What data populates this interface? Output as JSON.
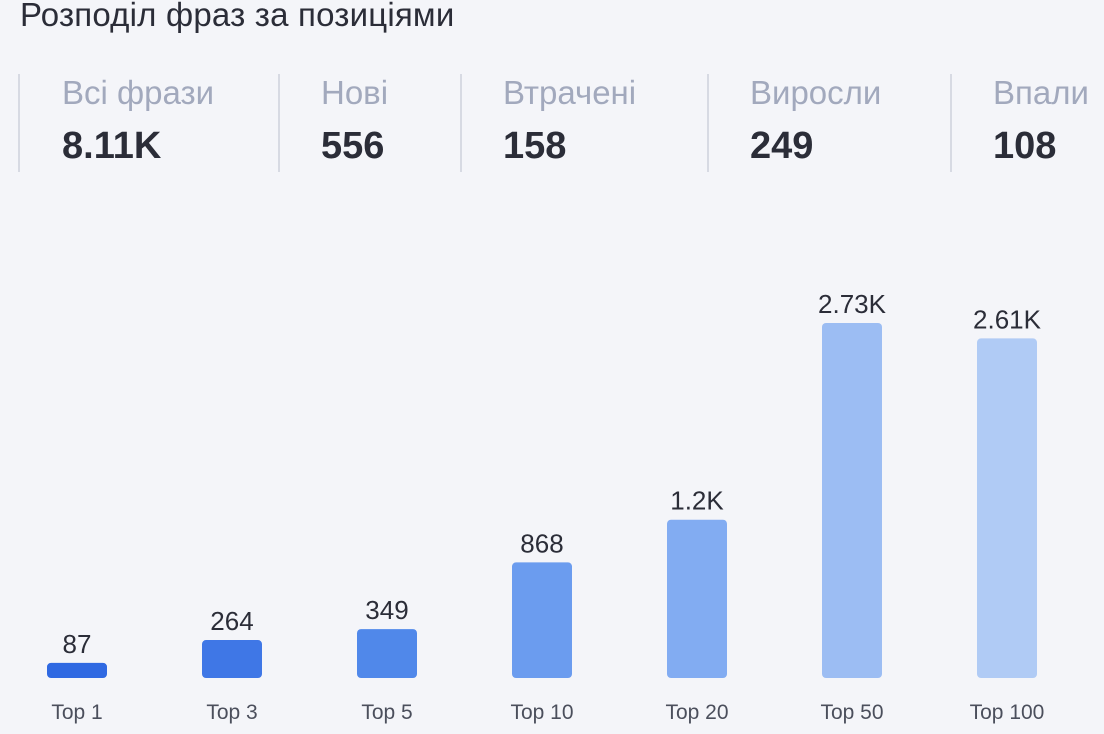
{
  "title": "Розподіл фраз за позиціями",
  "stats": [
    {
      "label": "Всі фрази",
      "value": "8.11K"
    },
    {
      "label": "Нові",
      "value": "556"
    },
    {
      "label": "Втрачені",
      "value": "158"
    },
    {
      "label": "Виросли",
      "value": "249"
    },
    {
      "label": "Впали",
      "value": "108"
    }
  ],
  "chart_data": {
    "type": "bar",
    "title": "",
    "xlabel": "",
    "ylabel": "",
    "categories": [
      "Top 1",
      "Top 3",
      "Top 5",
      "Top 10",
      "Top 20",
      "Top 50",
      "Top 100"
    ],
    "values": [
      87,
      264,
      349,
      868,
      1200,
      2730,
      2610
    ],
    "value_labels": [
      "87",
      "264",
      "349",
      "868",
      "1.2K",
      "2.73K",
      "2.61K"
    ],
    "colors": [
      "#2f69e2",
      "#3f77e6",
      "#5088ea",
      "#6b9cef",
      "#82acf2",
      "#9cbdf3",
      "#b0cbf5"
    ],
    "ylim": [
      0,
      2730
    ],
    "grid": false,
    "legend": "none"
  }
}
